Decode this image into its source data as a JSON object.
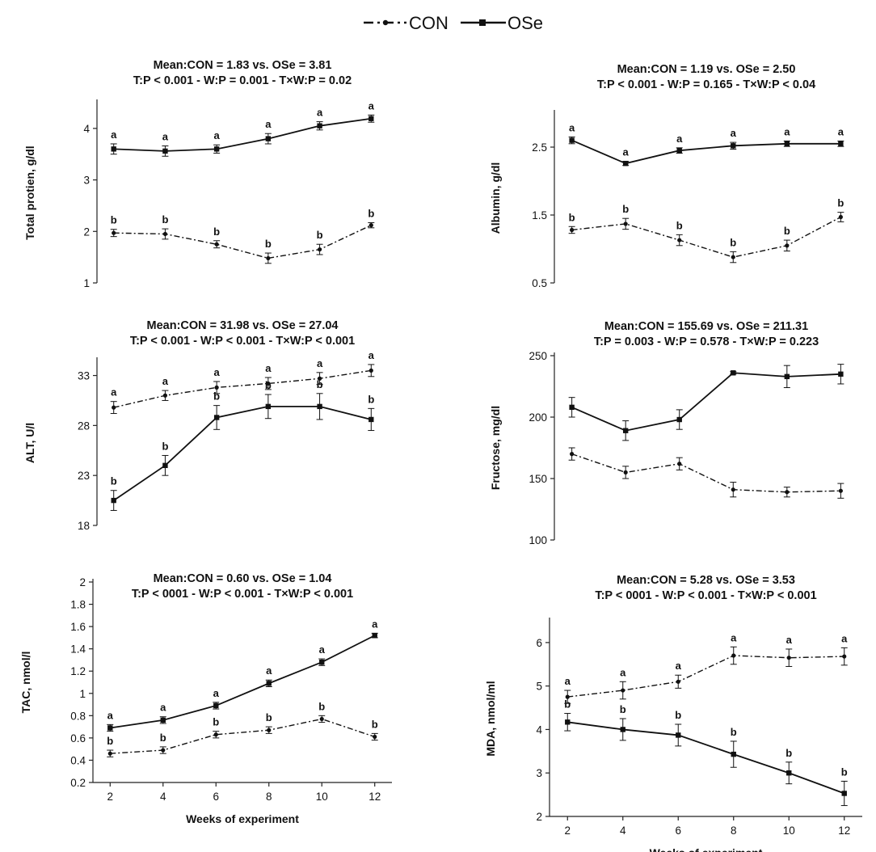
{
  "legend": {
    "con_label": "CON",
    "ose_label": "OSe"
  },
  "chart_data": [
    {
      "type": "line",
      "title": "Mean:CON = 1.83 vs. OSe = 3.81",
      "subtitle": "T:P < 0.001 - W:P = 0.001 - T×W:P = 0.02",
      "xlabel": "",
      "ylabel": "Total protien, g/dl",
      "x": [
        2,
        4,
        6,
        8,
        10,
        12
      ],
      "ylim": [
        1,
        4.5
      ],
      "yticks": [
        1,
        2,
        3,
        4
      ],
      "show_xaxis": false,
      "series": [
        {
          "name": "CON",
          "values": [
            1.97,
            1.95,
            1.75,
            1.48,
            1.65,
            2.12
          ],
          "errors": [
            0.07,
            0.1,
            0.07,
            0.1,
            0.1,
            0.05
          ],
          "letters": [
            "b",
            "b",
            "b",
            "b",
            "b",
            "b"
          ]
        },
        {
          "name": "OSe",
          "values": [
            3.6,
            3.56,
            3.6,
            3.8,
            4.05,
            4.19
          ],
          "errors": [
            0.1,
            0.1,
            0.08,
            0.1,
            0.08,
            0.07
          ],
          "letters": [
            "a",
            "a",
            "a",
            "a",
            "a",
            "a"
          ]
        }
      ]
    },
    {
      "type": "line",
      "title": "Mean:CON = 1.19 vs. OSe = 2.50",
      "subtitle": "T:P < 0.001 - W:P = 0.165 - T×W:P < 0.04",
      "xlabel": "",
      "ylabel": "Albumin, g/dl",
      "x": [
        2,
        4,
        6,
        8,
        10,
        12
      ],
      "ylim": [
        0.5,
        3
      ],
      "yticks": [
        0.5,
        1.5,
        2.5
      ],
      "show_xaxis": false,
      "series": [
        {
          "name": "CON",
          "values": [
            1.28,
            1.37,
            1.13,
            0.88,
            1.05,
            1.47
          ],
          "errors": [
            0.05,
            0.08,
            0.08,
            0.08,
            0.08,
            0.07
          ],
          "letters": [
            "b",
            "b",
            "b",
            "b",
            "b",
            "b"
          ]
        },
        {
          "name": "OSe",
          "values": [
            2.6,
            2.26,
            2.45,
            2.52,
            2.55,
            2.55
          ],
          "errors": [
            0.05,
            0.03,
            0.04,
            0.05,
            0.04,
            0.04
          ],
          "letters": [
            "a",
            "a",
            "a",
            "a",
            "a",
            "a"
          ]
        }
      ]
    },
    {
      "type": "line",
      "title": "Mean:CON = 31.98 vs. OSe = 27.04",
      "subtitle": "T:P < 0.001 - W:P < 0.001 - T×W:P < 0.001",
      "xlabel": "",
      "ylabel": "ALT, U/l",
      "x": [
        2,
        4,
        6,
        8,
        10,
        12
      ],
      "ylim": [
        18,
        34.5
      ],
      "yticks": [
        18,
        23,
        28,
        33
      ],
      "show_xaxis": false,
      "series": [
        {
          "name": "CON",
          "values": [
            29.8,
            31.0,
            31.8,
            32.2,
            32.7,
            33.5
          ],
          "errors": [
            0.6,
            0.5,
            0.6,
            0.6,
            0.6,
            0.6
          ],
          "letters": [
            "a",
            "a",
            "a",
            "a",
            "a",
            "a"
          ]
        },
        {
          "name": "OSe",
          "values": [
            20.5,
            24.0,
            28.8,
            29.9,
            29.9,
            28.6
          ],
          "errors": [
            1.0,
            1.0,
            1.2,
            1.2,
            1.3,
            1.1
          ],
          "letters": [
            "b",
            "b",
            "b",
            "b",
            "b",
            "b"
          ]
        }
      ]
    },
    {
      "type": "line",
      "title": "Mean:CON = 155.69 vs. OSe = 211.31",
      "subtitle": "T:P = 0.003 - W:P = 0.578 -  T×W:P = 0.223",
      "xlabel": "",
      "ylabel": "Fructose, mg/dl",
      "x": [
        2,
        4,
        6,
        8,
        10,
        12
      ],
      "ylim": [
        100,
        250
      ],
      "yticks": [
        100,
        150,
        200,
        250
      ],
      "show_xaxis": false,
      "series": [
        {
          "name": "CON",
          "values": [
            170,
            155,
            162,
            141,
            139,
            140
          ],
          "errors": [
            5,
            5,
            5,
            6,
            4,
            6
          ],
          "letters": [
            "",
            "",
            "",
            "",
            "",
            ""
          ]
        },
        {
          "name": "OSe",
          "values": [
            208,
            189,
            198,
            236,
            233,
            235
          ],
          "errors": [
            8,
            8,
            8,
            1,
            9,
            8
          ],
          "letters": [
            "",
            "",
            "",
            "",
            "",
            ""
          ]
        }
      ]
    },
    {
      "type": "line",
      "title": "Mean:CON = 0.60 vs. OSe = 1.04",
      "subtitle": "T:P < 0001 - W:P < 0.001 - T×W:P < 0.001",
      "xlabel": "Weeks of experiment",
      "ylabel": "TAC, nmol/l",
      "x": [
        2,
        4,
        6,
        8,
        10,
        12
      ],
      "ylim": [
        0.2,
        2
      ],
      "yticks": [
        0.2,
        0.4,
        0.6,
        0.8,
        1,
        1.2,
        1.4,
        1.6,
        1.8,
        2
      ],
      "show_xaxis": true,
      "series": [
        {
          "name": "CON",
          "values": [
            0.46,
            0.49,
            0.63,
            0.67,
            0.77,
            0.61
          ],
          "errors": [
            0.03,
            0.03,
            0.03,
            0.03,
            0.03,
            0.03
          ],
          "letters": [
            "b",
            "b",
            "b",
            "b",
            "b",
            "b"
          ]
        },
        {
          "name": "OSe",
          "values": [
            0.69,
            0.76,
            0.89,
            1.09,
            1.28,
            1.52
          ],
          "errors": [
            0.03,
            0.03,
            0.03,
            0.03,
            0.03,
            0.02
          ],
          "letters": [
            "a",
            "a",
            "a",
            "a",
            "a",
            "a"
          ]
        }
      ]
    },
    {
      "type": "line",
      "title": "Mean:CON = 5.28 vs. OSe = 3.53",
      "subtitle": "T:P < 0001 - W:P < 0.001 - T×W:P < 0.001",
      "xlabel": "Weeks of experiment",
      "ylabel": "MDA, nmol/ml",
      "x": [
        2,
        4,
        6,
        8,
        10,
        12
      ],
      "ylim": [
        2,
        6.5
      ],
      "yticks": [
        2,
        3,
        4,
        5,
        6
      ],
      "show_xaxis": true,
      "series": [
        {
          "name": "CON",
          "values": [
            4.75,
            4.9,
            5.1,
            5.7,
            5.65,
            5.68
          ],
          "errors": [
            0.15,
            0.2,
            0.15,
            0.2,
            0.2,
            0.2
          ],
          "letters": [
            "a",
            "a",
            "a",
            "a",
            "a",
            "a"
          ]
        },
        {
          "name": "OSe",
          "values": [
            4.17,
            4.0,
            3.87,
            3.43,
            3.0,
            2.53
          ],
          "errors": [
            0.2,
            0.25,
            0.25,
            0.3,
            0.25,
            0.28
          ],
          "letters": [
            "b",
            "b",
            "b",
            "b",
            "b",
            "b"
          ]
        }
      ]
    }
  ]
}
